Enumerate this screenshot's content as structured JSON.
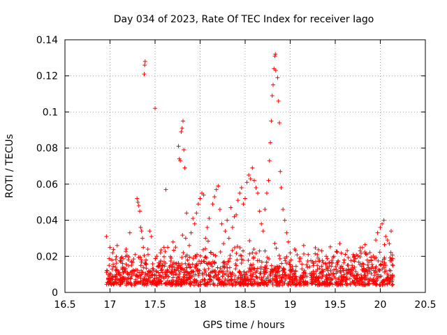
{
  "chart_data": {
    "type": "scatter",
    "title": "Day 034 of 2023, Rate Of TEC Index for receiver Iago",
    "xlabel": "GPS time / hours",
    "ylabel": "ROTI / TECUs",
    "xlim": [
      16.5,
      20.5
    ],
    "ylim": [
      0,
      0.14
    ],
    "xticks": [
      16.5,
      17,
      17.5,
      18,
      18.5,
      19,
      19.5,
      20,
      20.5
    ],
    "xtick_labels": [
      "16.5",
      "17",
      "17.5",
      "18",
      "18.5",
      "19",
      "19.5",
      "20",
      "20.5"
    ],
    "yticks": [
      0,
      0.02,
      0.04,
      0.06,
      0.08,
      0.1,
      0.12,
      0.14
    ],
    "ytick_labels": [
      "0",
      "0.02",
      "0.04",
      "0.06",
      "0.08",
      "0.1",
      "0.12",
      "0.14"
    ],
    "grid": true,
    "marker": "plus",
    "color": "#ff0000",
    "series": [
      {
        "name": "ROTI",
        "points": [
          [
            16.96,
            0.031
          ],
          [
            16.97,
            0.012
          ],
          [
            16.98,
            0.008
          ],
          [
            16.99,
            0.015
          ],
          [
            17.0,
            0.025
          ],
          [
            17.01,
            0.01
          ],
          [
            17.02,
            0.018
          ],
          [
            17.03,
            0.022
          ],
          [
            17.05,
            0.009
          ],
          [
            17.06,
            0.014
          ],
          [
            17.08,
            0.026
          ],
          [
            17.1,
            0.011
          ],
          [
            17.12,
            0.019
          ],
          [
            17.14,
            0.016
          ],
          [
            17.16,
            0.013
          ],
          [
            17.18,
            0.024
          ],
          [
            17.2,
            0.01
          ],
          [
            17.22,
            0.033
          ],
          [
            17.24,
            0.017
          ],
          [
            17.26,
            0.012
          ],
          [
            17.28,
            0.021
          ],
          [
            17.3,
            0.052
          ],
          [
            17.31,
            0.05
          ],
          [
            17.32,
            0.048
          ],
          [
            17.33,
            0.045
          ],
          [
            17.34,
            0.036
          ],
          [
            17.35,
            0.034
          ],
          [
            17.36,
            0.03
          ],
          [
            17.37,
            0.025
          ],
          [
            17.38,
            0.121
          ],
          [
            17.385,
            0.126
          ],
          [
            17.39,
            0.128
          ],
          [
            17.4,
            0.018
          ],
          [
            17.42,
            0.024
          ],
          [
            17.44,
            0.034
          ],
          [
            17.46,
            0.031
          ],
          [
            17.48,
            0.013
          ],
          [
            17.5,
            0.102
          ],
          [
            17.52,
            0.02
          ],
          [
            17.54,
            0.015
          ],
          [
            17.56,
            0.022
          ],
          [
            17.58,
            0.011
          ],
          [
            17.6,
            0.017
          ],
          [
            17.62,
            0.057
          ],
          [
            17.64,
            0.025
          ],
          [
            17.66,
            0.014
          ],
          [
            17.68,
            0.019
          ],
          [
            17.7,
            0.028
          ],
          [
            17.72,
            0.012
          ],
          [
            17.74,
            0.016
          ],
          [
            17.76,
            0.081
          ],
          [
            17.77,
            0.074
          ],
          [
            17.78,
            0.073
          ],
          [
            17.79,
            0.089
          ],
          [
            17.8,
            0.091
          ],
          [
            17.81,
            0.095
          ],
          [
            17.82,
            0.079
          ],
          [
            17.83,
            0.069
          ],
          [
            17.84,
            0.03
          ],
          [
            17.85,
            0.044
          ],
          [
            17.86,
            0.018
          ],
          [
            17.88,
            0.026
          ],
          [
            17.9,
            0.033
          ],
          [
            17.92,
            0.041
          ],
          [
            17.94,
            0.038
          ],
          [
            17.96,
            0.044
          ],
          [
            17.98,
            0.049
          ],
          [
            18.0,
            0.052
          ],
          [
            18.02,
            0.055
          ],
          [
            18.04,
            0.054
          ],
          [
            18.06,
            0.03
          ],
          [
            18.08,
            0.036
          ],
          [
            18.1,
            0.041
          ],
          [
            18.12,
            0.022
          ],
          [
            18.14,
            0.049
          ],
          [
            18.16,
            0.053
          ],
          [
            18.18,
            0.057
          ],
          [
            18.2,
            0.059
          ],
          [
            18.22,
            0.046
          ],
          [
            18.24,
            0.038
          ],
          [
            18.26,
            0.027
          ],
          [
            18.28,
            0.034
          ],
          [
            18.3,
            0.04
          ],
          [
            18.32,
            0.03
          ],
          [
            18.34,
            0.047
          ],
          [
            18.36,
            0.036
          ],
          [
            18.38,
            0.042
          ],
          [
            18.4,
            0.043
          ],
          [
            18.42,
            0.051
          ],
          [
            18.44,
            0.055
          ],
          [
            18.46,
            0.058
          ],
          [
            18.48,
            0.049
          ],
          [
            18.5,
            0.052
          ],
          [
            18.52,
            0.061
          ],
          [
            18.54,
            0.065
          ],
          [
            18.56,
            0.063
          ],
          [
            18.58,
            0.069
          ],
          [
            18.6,
            0.062
          ],
          [
            18.62,
            0.058
          ],
          [
            18.64,
            0.055
          ],
          [
            18.66,
            0.045
          ],
          [
            18.68,
            0.038
          ],
          [
            18.7,
            0.034
          ],
          [
            18.72,
            0.046
          ],
          [
            18.74,
            0.055
          ],
          [
            18.76,
            0.062
          ],
          [
            18.77,
            0.073
          ],
          [
            18.78,
            0.083
          ],
          [
            18.79,
            0.095
          ],
          [
            18.8,
            0.109
          ],
          [
            18.81,
            0.115
          ],
          [
            18.82,
            0.124
          ],
          [
            18.83,
            0.131
          ],
          [
            18.835,
            0.132
          ],
          [
            18.84,
            0.123
          ],
          [
            18.86,
            0.119
          ],
          [
            18.87,
            0.106
          ],
          [
            18.88,
            0.094
          ],
          [
            18.89,
            0.067
          ],
          [
            18.9,
            0.058
          ],
          [
            18.92,
            0.046
          ],
          [
            18.94,
            0.04
          ],
          [
            18.96,
            0.033
          ],
          [
            18.98,
            0.028
          ],
          [
            19.0,
            0.022
          ],
          [
            19.05,
            0.024
          ],
          [
            19.1,
            0.019
          ],
          [
            19.15,
            0.026
          ],
          [
            19.2,
            0.021
          ],
          [
            19.25,
            0.017
          ],
          [
            19.3,
            0.015
          ],
          [
            19.35,
            0.023
          ],
          [
            19.4,
            0.02
          ],
          [
            19.45,
            0.012
          ],
          [
            19.5,
            0.008
          ],
          [
            19.52,
            0.005
          ],
          [
            19.55,
            0.027
          ],
          [
            19.6,
            0.018
          ],
          [
            19.65,
            0.013
          ],
          [
            19.7,
            0.021
          ],
          [
            19.75,
            0.01
          ],
          [
            19.8,
            0.016
          ],
          [
            19.85,
            0.012
          ],
          [
            19.9,
            0.018
          ],
          [
            19.95,
            0.029
          ],
          [
            19.97,
            0.033
          ],
          [
            20.0,
            0.036
          ],
          [
            20.02,
            0.038
          ],
          [
            20.04,
            0.04
          ],
          [
            20.06,
            0.031
          ],
          [
            20.08,
            0.029
          ],
          [
            20.1,
            0.027
          ],
          [
            20.12,
            0.034
          ],
          [
            20.14,
            0.015
          ]
        ]
      }
    ]
  }
}
